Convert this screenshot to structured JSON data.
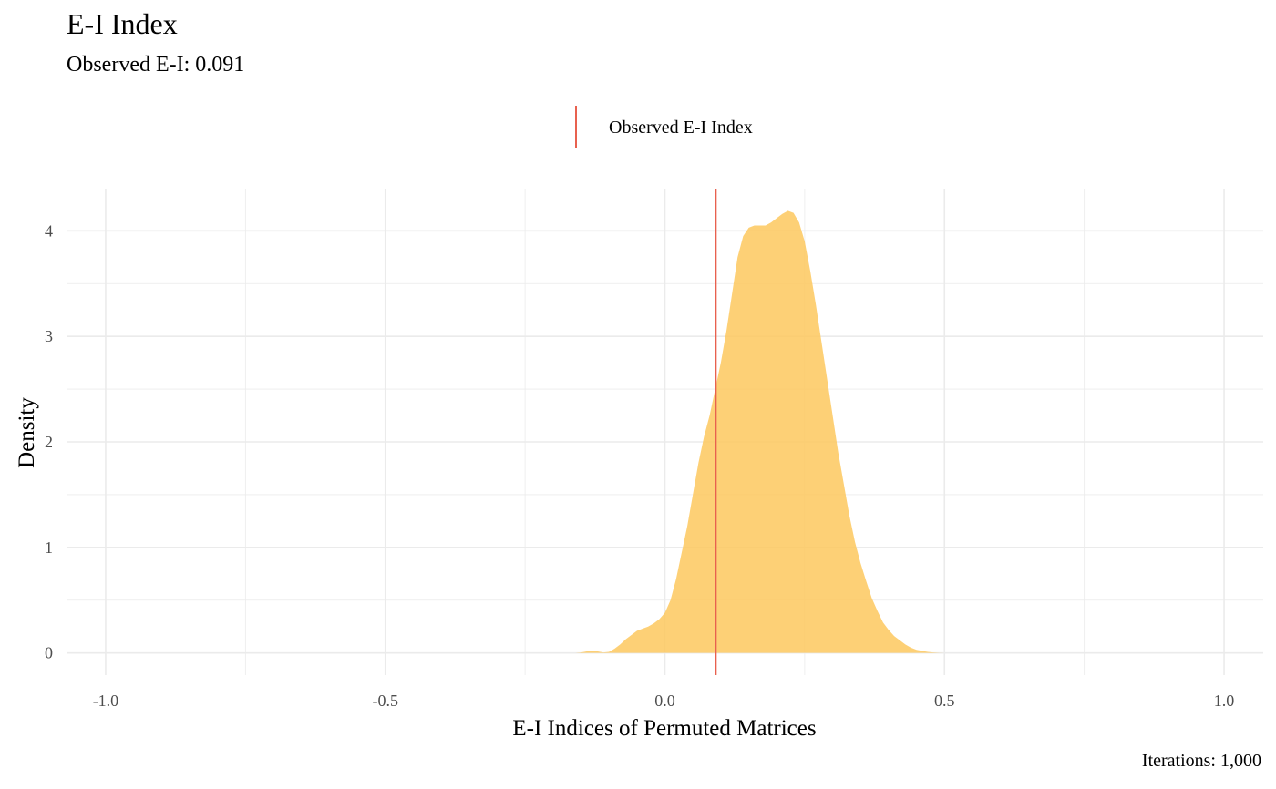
{
  "chart_data": {
    "type": "area",
    "title": "E-I Index",
    "subtitle": "Observed E-I: 0.091",
    "xlabel": "E-I Indices of Permuted Matrices",
    "ylabel": "Density",
    "caption": "Iterations: 1,000",
    "xlim": [
      -1.07,
      1.07
    ],
    "ylim": [
      -0.21,
      4.4
    ],
    "x_ticks": [
      -1.0,
      -0.5,
      0.0,
      0.5,
      1.0
    ],
    "x_tick_labels": [
      "-1.0",
      "-0.5",
      "0.0",
      "0.5",
      "1.0"
    ],
    "y_ticks": [
      0,
      1,
      2,
      3,
      4
    ],
    "y_tick_labels": [
      "0",
      "1",
      "2",
      "3",
      "4"
    ],
    "grid": true,
    "legend": {
      "position": "top",
      "entries": [
        "Observed E-I Index"
      ]
    },
    "observed_value": 0.091,
    "observed_label": "Observed E-I Index",
    "colors": {
      "density_fill": "#fdc85e",
      "observed_line": "#e8614f",
      "grid": "#ebebeb"
    },
    "density": {
      "x": [
        -0.16,
        -0.15,
        -0.14,
        -0.13,
        -0.12,
        -0.11,
        -0.1,
        -0.09,
        -0.08,
        -0.07,
        -0.06,
        -0.05,
        -0.04,
        -0.03,
        -0.02,
        -0.01,
        0.0,
        0.01,
        0.02,
        0.03,
        0.04,
        0.05,
        0.06,
        0.07,
        0.08,
        0.09,
        0.1,
        0.11,
        0.12,
        0.13,
        0.14,
        0.15,
        0.16,
        0.17,
        0.18,
        0.19,
        0.2,
        0.21,
        0.22,
        0.23,
        0.24,
        0.25,
        0.26,
        0.27,
        0.28,
        0.29,
        0.3,
        0.31,
        0.32,
        0.33,
        0.34,
        0.35,
        0.36,
        0.37,
        0.38,
        0.39,
        0.4,
        0.41,
        0.42,
        0.43,
        0.44,
        0.45,
        0.46,
        0.47,
        0.48,
        0.49,
        0.5
      ],
      "y": [
        0.0,
        0.005,
        0.015,
        0.02,
        0.015,
        0.005,
        0.01,
        0.04,
        0.08,
        0.13,
        0.17,
        0.21,
        0.23,
        0.25,
        0.28,
        0.32,
        0.38,
        0.5,
        0.7,
        0.95,
        1.2,
        1.5,
        1.8,
        2.05,
        2.25,
        2.5,
        2.75,
        3.05,
        3.4,
        3.75,
        3.95,
        4.03,
        4.05,
        4.05,
        4.05,
        4.08,
        4.12,
        4.16,
        4.19,
        4.17,
        4.08,
        3.9,
        3.62,
        3.3,
        2.95,
        2.6,
        2.25,
        1.9,
        1.6,
        1.3,
        1.05,
        0.85,
        0.68,
        0.52,
        0.4,
        0.29,
        0.22,
        0.16,
        0.12,
        0.08,
        0.05,
        0.03,
        0.02,
        0.01,
        0.005,
        0.002,
        0.0
      ]
    }
  }
}
